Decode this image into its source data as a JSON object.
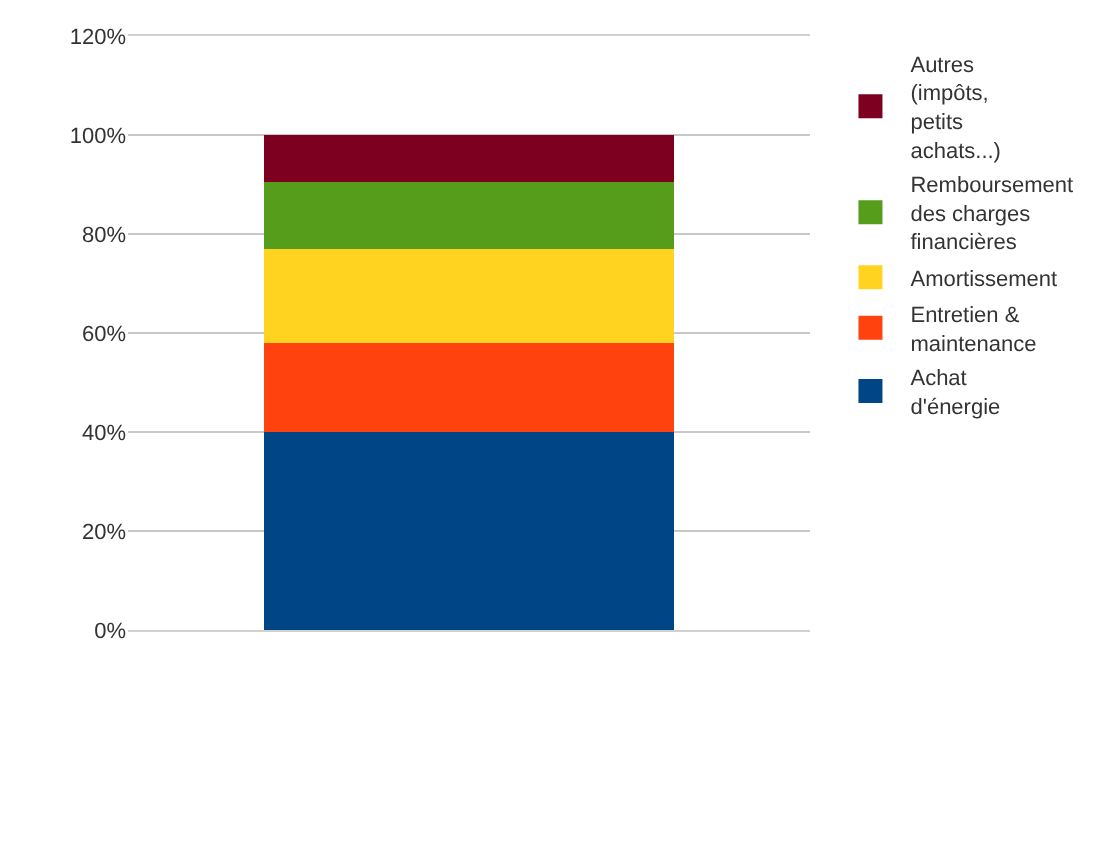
{
  "chart_data": {
    "type": "bar",
    "stacked": true,
    "categories": [
      null
    ],
    "series": [
      {
        "name": "Achat d'énergie",
        "color": "#004586",
        "values": [
          40
        ]
      },
      {
        "name": "Entretien & maintenance",
        "color": "#ff420e",
        "values": [
          18
        ]
      },
      {
        "name": "Amortissement",
        "color": "#ffd320",
        "values": [
          19
        ]
      },
      {
        "name": "Remboursement des charges financières",
        "color": "#579d1c",
        "values": [
          13.5
        ]
      },
      {
        "name": "Autres (impôts, petits achats...)",
        "color": "#7e0021",
        "values": [
          9.5
        ]
      }
    ],
    "ylim": [
      0,
      120
    ],
    "yticks": [
      {
        "value": 0,
        "label": "0%"
      },
      {
        "value": 20,
        "label": "20%"
      },
      {
        "value": 40,
        "label": "40%"
      },
      {
        "value": 60,
        "label": "60%"
      },
      {
        "value": 80,
        "label": "80%"
      },
      {
        "value": 100,
        "label": "100%"
      },
      {
        "value": 120,
        "label": "120%"
      }
    ],
    "grid": "y",
    "legend": "right"
  }
}
